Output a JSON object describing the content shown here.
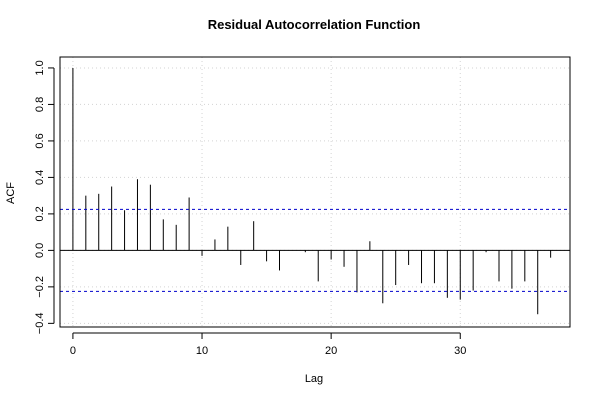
{
  "chart_data": {
    "type": "bar",
    "title": "Residual Autocorrelation Function",
    "xlabel": "Lag",
    "ylabel": "ACF",
    "xlim": [
      -1,
      38.5
    ],
    "ylim": [
      -0.42,
      1.06
    ],
    "x_ticks": [
      0,
      10,
      20,
      30
    ],
    "y_ticks": [
      -0.4,
      -0.2,
      0.0,
      0.2,
      0.4,
      0.6,
      0.8,
      1.0
    ],
    "y_tick_labels": [
      "−0.4",
      "−0.2",
      "0.0",
      "0.2",
      "0.4",
      "0.6",
      "0.8",
      "1.0"
    ],
    "grid": true,
    "confidence_bounds": [
      0.225,
      -0.225
    ],
    "lags": [
      0,
      1,
      2,
      3,
      4,
      5,
      6,
      7,
      8,
      9,
      10,
      11,
      12,
      13,
      14,
      15,
      16,
      17,
      18,
      19,
      20,
      21,
      22,
      23,
      24,
      25,
      26,
      27,
      28,
      29,
      30,
      31,
      32,
      33,
      34,
      35,
      36,
      37
    ],
    "values": [
      1.0,
      0.3,
      0.31,
      0.35,
      0.22,
      0.39,
      0.36,
      0.17,
      0.14,
      0.29,
      -0.03,
      0.06,
      0.13,
      -0.08,
      0.16,
      -0.06,
      -0.11,
      0.0,
      -0.01,
      -0.17,
      -0.05,
      -0.09,
      -0.23,
      0.05,
      -0.29,
      -0.19,
      -0.08,
      -0.18,
      -0.18,
      -0.26,
      -0.27,
      -0.22,
      -0.01,
      -0.17,
      -0.21,
      -0.17,
      -0.35,
      -0.04
    ],
    "colors": {
      "bars": "#000000",
      "bounds": "#0000cc",
      "grid": "#d3d3d3",
      "zero_line": "#000000"
    }
  }
}
